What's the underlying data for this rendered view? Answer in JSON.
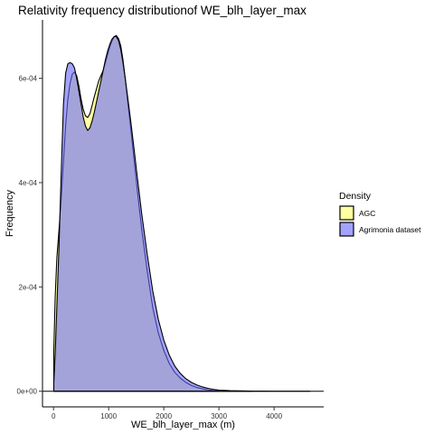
{
  "chart_data": {
    "type": "area",
    "title": "Relativity frequency distributionof WE_blh_layer_max",
    "xlabel": "WE_blh_layer_max (m)",
    "ylabel": "Frequency",
    "xlim": [
      -200,
      4900
    ],
    "ylim": [
      -3e-05,
      0.000712
    ],
    "x_ticks": [
      0,
      1000,
      2000,
      3000,
      4000
    ],
    "x_tick_labels": [
      "0",
      "1000",
      "2000",
      "3000",
      "4000"
    ],
    "y_ticks": [
      0,
      0.0002,
      0.0004,
      0.0006
    ],
    "y_tick_labels": [
      "0e+00",
      "2e-04",
      "4e-04",
      "6e-04"
    ],
    "grid": false,
    "legend": {
      "title": "Density",
      "position": "right"
    },
    "series": [
      {
        "name": "AGC",
        "fill": "#ffff66",
        "fill_opacity": 0.6,
        "stroke": "#000000",
        "points": [
          [
            5,
            7.7e-05
          ],
          [
            30,
            0.00018
          ],
          [
            60,
            0.000255
          ],
          [
            100,
            0.00031
          ],
          [
            140,
            0.00037
          ],
          [
            180,
            0.00044
          ],
          [
            220,
            0.00051
          ],
          [
            260,
            0.00056
          ],
          [
            300,
            0.00059
          ],
          [
            340,
            0.000608
          ],
          [
            380,
            0.000612
          ],
          [
            420,
            0.000605
          ],
          [
            460,
            0.000585
          ],
          [
            500,
            0.00056
          ],
          [
            540,
            0.00054
          ],
          [
            580,
            0.000528
          ],
          [
            620,
            0.000525
          ],
          [
            660,
            0.000532
          ],
          [
            700,
            0.000548
          ],
          [
            740,
            0.000565
          ],
          [
            780,
            0.00058
          ],
          [
            820,
            0.000595
          ],
          [
            860,
            0.000605
          ],
          [
            900,
            0.000615
          ],
          [
            940,
            0.00063
          ],
          [
            980,
            0.000645
          ],
          [
            1020,
            0.00066
          ],
          [
            1060,
            0.000672
          ],
          [
            1100,
            0.00068
          ],
          [
            1140,
            0.000682
          ],
          [
            1180,
            0.000676
          ],
          [
            1220,
            0.000662
          ],
          [
            1260,
            0.000635
          ],
          [
            1300,
            0.0006
          ],
          [
            1340,
            0.00056
          ],
          [
            1400,
            0.000505
          ],
          [
            1460,
            0.000445
          ],
          [
            1520,
            0.000385
          ],
          [
            1600,
            0.00031
          ],
          [
            1700,
            0.00023
          ],
          [
            1800,
            0.00016
          ],
          [
            1900,
            0.000112
          ],
          [
            2000,
            7.8e-05
          ],
          [
            2100,
            5.3e-05
          ],
          [
            2200,
            3.6e-05
          ],
          [
            2300,
            2.5e-05
          ],
          [
            2400,
            1.7e-05
          ],
          [
            2500,
            1.1e-05
          ],
          [
            2600,
            7.2e-06
          ],
          [
            2700,
            4.5e-06
          ],
          [
            2800,
            2.6e-06
          ],
          [
            2900,
            1.4e-06
          ],
          [
            3000,
            7e-07
          ],
          [
            3200,
            3e-07
          ],
          [
            3400,
            1e-07
          ],
          [
            3600,
            5e-08
          ]
        ]
      },
      {
        "name": "Agrimonia dataset",
        "fill": "#6666ff",
        "fill_opacity": 0.6,
        "stroke": "#000000",
        "points": [
          [
            5,
            1.7e-05
          ],
          [
            30,
            7e-05
          ],
          [
            60,
            0.00016
          ],
          [
            100,
            0.00028
          ],
          [
            140,
            0.00042
          ],
          [
            180,
            0.00055
          ],
          [
            220,
            0.00061
          ],
          [
            260,
            0.000628
          ],
          [
            300,
            0.00063
          ],
          [
            340,
            0.000628
          ],
          [
            380,
            0.00062
          ],
          [
            420,
            0.0006
          ],
          [
            460,
            0.000575
          ],
          [
            500,
            0.00055
          ],
          [
            540,
            0.000525
          ],
          [
            580,
            0.000508
          ],
          [
            620,
            0.0005
          ],
          [
            660,
            0.000505
          ],
          [
            700,
            0.000518
          ],
          [
            740,
            0.000535
          ],
          [
            780,
            0.000555
          ],
          [
            820,
            0.000575
          ],
          [
            860,
            0.000595
          ],
          [
            900,
            0.000615
          ],
          [
            940,
            0.000635
          ],
          [
            980,
            0.000652
          ],
          [
            1020,
            0.000665
          ],
          [
            1060,
            0.000675
          ],
          [
            1100,
            0.00068
          ],
          [
            1140,
            0.00068
          ],
          [
            1180,
            0.000672
          ],
          [
            1220,
            0.000655
          ],
          [
            1260,
            0.00063
          ],
          [
            1300,
            0.0006
          ],
          [
            1340,
            0.000568
          ],
          [
            1400,
            0.000518
          ],
          [
            1460,
            0.000465
          ],
          [
            1520,
            0.00041
          ],
          [
            1600,
            0.00034
          ],
          [
            1700,
            0.000262
          ],
          [
            1800,
            0.000192
          ],
          [
            1900,
            0.000138
          ],
          [
            2000,
            9.8e-05
          ],
          [
            2100,
            6.9e-05
          ],
          [
            2200,
            4.8e-05
          ],
          [
            2300,
            3.4e-05
          ],
          [
            2400,
            2.4e-05
          ],
          [
            2500,
            1.7e-05
          ],
          [
            2600,
            1.2e-05
          ],
          [
            2700,
            8.2e-06
          ],
          [
            2800,
            5.5e-06
          ],
          [
            2900,
            3.6e-06
          ],
          [
            3000,
            2.3e-06
          ],
          [
            3200,
            1.2e-06
          ],
          [
            3400,
            6e-07
          ],
          [
            3600,
            3e-07
          ],
          [
            3800,
            1.5e-07
          ],
          [
            4000,
            7e-08
          ],
          [
            4300,
            3e-08
          ],
          [
            4650,
            1e-08
          ]
        ]
      }
    ]
  }
}
